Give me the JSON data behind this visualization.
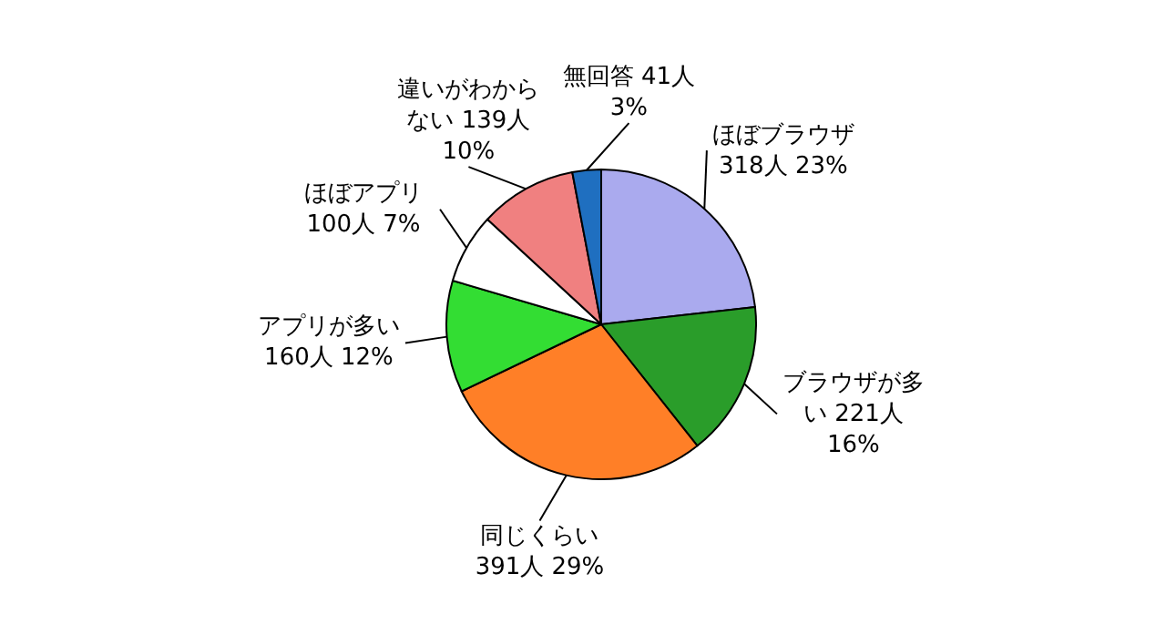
{
  "chart_data": {
    "type": "pie",
    "categories": [
      "ほぼブラウザ 318人 23%",
      "ブラウザが多い 221人 16%",
      "同じくらい 391人 29%",
      "アプリが多い 160人 12%",
      "ほぼアプリ 100人 7%",
      "違いがわからない 139人 10%",
      "無回答 41人 3%"
    ],
    "values": [
      318,
      221,
      391,
      160,
      100,
      139,
      41
    ],
    "colors": [
      "#aaaaee",
      "#2a9d2a",
      "#ff7f27",
      "#33dd33",
      "#ffffff",
      "#f08080",
      "#1f6fc0"
    ]
  }
}
